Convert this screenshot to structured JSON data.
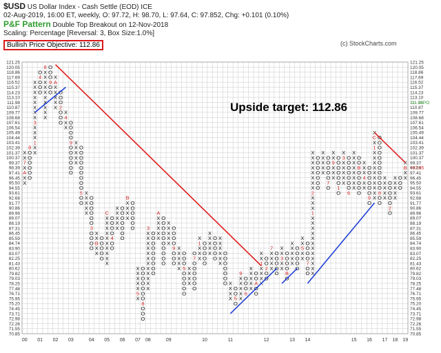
{
  "header": {
    "symbol": "$USD",
    "name": "US Dollar Index - Cash Settle (EOD)  ICE",
    "quote_line": "02-Aug-2019, 16:00 ET, weekly, O: 97.72, H: 98.70, L: 97.64, C: 97.852, Chg: +0.101 (0.10%)",
    "pf_title": "P&F Pattern",
    "pattern_text": "Double Top Breakout on 12-Nov-2018",
    "scaling_text": "Scaling: Percentage [Reversal: 3, Box Size:1.0%]",
    "objective_text": "Bullish Price Objective: 112.86",
    "copyright": "(c) StockCharts.com"
  },
  "colors": {
    "x_mark": "#111111",
    "o_mark": "#111111",
    "month_mark": "#cc2222",
    "resistance": "#e01b1b",
    "support": "#1f3fd6",
    "grid": "#c8c8c8",
    "current_price": "#cc2222",
    "pattern_green": "#2e9b2e"
  },
  "chart_data": {
    "type": "point-and-figure",
    "title": "$USD",
    "annotation": "Upside target: 112.86",
    "box_size_pct": 1.0,
    "reversal": 3,
    "y_scale": "log",
    "ylim": [
      70.85,
      121.25
    ],
    "y_ticks": [
      121.25,
      120.05,
      118.86,
      117.69,
      116.52,
      115.37,
      114.23,
      113.1,
      111.98,
      110.87,
      109.77,
      108.68,
      107.61,
      106.54,
      105.49,
      104.44,
      103.41,
      102.39,
      101.37,
      100.37,
      99.37,
      98.39,
      97.41,
      96.45,
      95.5,
      94.55,
      93.61,
      92.68,
      91.77,
      90.86,
      89.96,
      89.07,
      88.19,
      87.31,
      86.45,
      85.59,
      84.74,
      83.9,
      83.07,
      82.25,
      81.43,
      80.62,
      79.82,
      79.03,
      78.25,
      77.48,
      76.71,
      75.95,
      75.2,
      74.45,
      73.71,
      72.98,
      72.26,
      71.55,
      70.85
    ],
    "right_labels": [
      {
        "row": 8,
        "text": "111.98PO"
      },
      {
        "row": 21,
        "text": "+97.85"
      }
    ],
    "year_labels": [
      "00",
      "01",
      "02",
      "03",
      "04",
      "05",
      "06",
      "07",
      "08",
      "09",
      "10",
      "11",
      "12",
      "13",
      "14",
      "15",
      "16",
      "17",
      "18",
      "19"
    ],
    "column_years": [
      {
        "col": 0,
        "label": "00"
      },
      {
        "col": 3,
        "label": "01"
      },
      {
        "col": 6,
        "label": "02"
      },
      {
        "col": 9,
        "label": "03"
      },
      {
        "col": 13,
        "label": "04"
      },
      {
        "col": 16,
        "label": "05"
      },
      {
        "col": 19,
        "label": "06"
      },
      {
        "col": 22,
        "label": "07"
      },
      {
        "col": 24,
        "label": "08"
      },
      {
        "col": 28,
        "label": "09"
      },
      {
        "col": 35,
        "label": "10"
      },
      {
        "col": 40,
        "label": "11"
      },
      {
        "col": 47,
        "label": "12"
      },
      {
        "col": 52,
        "label": "13"
      },
      {
        "col": 55,
        "label": "14"
      },
      {
        "col": 64,
        "label": "15"
      },
      {
        "col": 67,
        "label": "16"
      },
      {
        "col": 70,
        "label": "17"
      },
      {
        "col": 72,
        "label": "18"
      },
      {
        "col": 74,
        "label": "19"
      }
    ],
    "columns": [
      {
        "type": "X",
        "top": 18,
        "bottom": 24,
        "marks": {
          "20": "7",
          "22": "A"
        }
      },
      {
        "type": "O",
        "top": 17,
        "bottom": 23,
        "marks": {
          "17": "8"
        }
      },
      {
        "type": "X",
        "top": 4,
        "bottom": 18,
        "marks": {
          "16": "1",
          "12": "3"
        }
      },
      {
        "type": "O",
        "top": 2,
        "bottom": 6,
        "marks": {
          "3": "4"
        }
      },
      {
        "type": "X",
        "top": 1,
        "bottom": 11,
        "marks": {
          "1": "8"
        }
      },
      {
        "type": "O",
        "top": 1,
        "bottom": 6,
        "marks": {
          "4": "9"
        }
      },
      {
        "type": "X",
        "top": 3,
        "bottom": 9,
        "marks": {
          "4": "A"
        }
      },
      {
        "type": "O",
        "top": 6,
        "bottom": 12,
        "marks": {
          "9": "2"
        }
      },
      {
        "type": "X",
        "top": 10,
        "bottom": 13,
        "marks": {
          "11": "4"
        }
      },
      {
        "type": "O",
        "top": 12,
        "bottom": 22,
        "marks": {
          "16": "9"
        }
      },
      {
        "type": "X",
        "top": 16,
        "bottom": 20,
        "marks": {}
      },
      {
        "type": "O",
        "top": 17,
        "bottom": 28,
        "marks": {
          "26": "5"
        }
      },
      {
        "type": "X",
        "top": 26,
        "bottom": 30,
        "marks": {}
      },
      {
        "type": "O",
        "top": 27,
        "bottom": 37,
        "marks": {
          "33": "3"
        }
      },
      {
        "type": "X",
        "top": 34,
        "bottom": 38,
        "marks": {
          "36": "B"
        }
      },
      {
        "type": "O",
        "top": 35,
        "bottom": 39,
        "marks": {}
      },
      {
        "type": "X",
        "top": 30,
        "bottom": 40,
        "marks": {
          "30": "C"
        }
      },
      {
        "type": "O",
        "top": 31,
        "bottom": 37,
        "marks": {
          "35": "4"
        }
      },
      {
        "type": "X",
        "top": 29,
        "bottom": 33,
        "marks": {}
      },
      {
        "type": "O",
        "top": 29,
        "bottom": 35,
        "marks": {}
      },
      {
        "type": "X",
        "top": 27,
        "bottom": 31,
        "marks": {
          "27": "B"
        }
      },
      {
        "type": "O",
        "top": 28,
        "bottom": 33,
        "marks": {}
      },
      {
        "type": "X",
        "top": 41,
        "bottom": 47,
        "marks": {
          "46": "5"
        }
      },
      {
        "type": "O",
        "top": 41,
        "bottom": 51,
        "marks": {
          "48": "8"
        }
      },
      {
        "type": "X",
        "top": 33,
        "bottom": 45,
        "marks": {
          "33": "3"
        }
      },
      {
        "type": "O",
        "top": 34,
        "bottom": 42,
        "marks": {}
      },
      {
        "type": "X",
        "top": 30,
        "bottom": 35,
        "marks": {
          "30": "A"
        }
      },
      {
        "type": "O",
        "top": 31,
        "bottom": 40,
        "marks": {}
      },
      {
        "type": "X",
        "top": 32,
        "bottom": 36,
        "marks": {}
      },
      {
        "type": "O",
        "top": 33,
        "bottom": 40,
        "marks": {
          "37": "9"
        }
      },
      {
        "type": "X",
        "top": 37,
        "bottom": 41,
        "marks": {}
      },
      {
        "type": "O",
        "top": 38,
        "bottom": 46,
        "marks": {
          "41": "5"
        }
      },
      {
        "type": "X",
        "top": 41,
        "bottom": 44,
        "marks": {}
      },
      {
        "type": "O",
        "top": 38,
        "bottom": 45,
        "marks": {
          "39": "7"
        }
      },
      {
        "type": "X",
        "top": 35,
        "bottom": 39,
        "marks": {
          "36": "1"
        }
      },
      {
        "type": "O",
        "top": 36,
        "bottom": 40,
        "marks": {}
      },
      {
        "type": "X",
        "top": 34,
        "bottom": 38,
        "marks": {}
      },
      {
        "type": "O",
        "top": 35,
        "bottom": 39,
        "marks": {}
      },
      {
        "type": "X",
        "top": 35,
        "bottom": 40,
        "marks": {}
      },
      {
        "type": "O",
        "top": 38,
        "bottom": 44,
        "marks": {}
      },
      {
        "type": "X",
        "top": 44,
        "bottom": 47,
        "marks": {}
      },
      {
        "type": "O",
        "top": 45,
        "bottom": 48,
        "marks": {
          "47": "5"
        }
      },
      {
        "type": "X",
        "top": 42,
        "bottom": 47,
        "marks": {
          "42": "9"
        }
      },
      {
        "type": "O",
        "top": 43,
        "bottom": 46,
        "marks": {
          "46": "6"
        }
      },
      {
        "type": "X",
        "top": 41,
        "bottom": 45,
        "marks": {}
      },
      {
        "type": "O",
        "top": 42,
        "bottom": 46,
        "marks": {
          "44": "A"
        }
      },
      {
        "type": "X",
        "top": 38,
        "bottom": 44,
        "marks": {
          "40": "1"
        }
      },
      {
        "type": "O",
        "top": 39,
        "bottom": 43,
        "marks": {
          "41": "2"
        }
      },
      {
        "type": "X",
        "top": 37,
        "bottom": 41,
        "marks": {
          "37": "7"
        }
      },
      {
        "type": "O",
        "top": 38,
        "bottom": 42,
        "marks": {}
      },
      {
        "type": "X",
        "top": 37,
        "bottom": 41,
        "marks": {
          "39": "3"
        }
      },
      {
        "type": "O",
        "top": 38,
        "bottom": 43,
        "marks": {
          "42": "B"
        }
      },
      {
        "type": "X",
        "top": 36,
        "bottom": 40,
        "marks": {}
      },
      {
        "type": "O",
        "top": 37,
        "bottom": 41,
        "marks": {}
      },
      {
        "type": "X",
        "top": 35,
        "bottom": 39,
        "marks": {
          "37": "5"
        }
      },
      {
        "type": "O",
        "top": 36,
        "bottom": 42,
        "marks": {
          "40": "7"
        }
      },
      {
        "type": "X",
        "top": 18,
        "bottom": 42,
        "marks": {
          "30": "1",
          "26": "2"
        }
      },
      {
        "type": "O",
        "top": 19,
        "bottom": 25,
        "marks": {}
      },
      {
        "type": "X",
        "top": 18,
        "bottom": 22,
        "marks": {}
      },
      {
        "type": "O",
        "top": 19,
        "bottom": 25,
        "marks": {
          "24": "7"
        }
      },
      {
        "type": "X",
        "top": 18,
        "bottom": 23,
        "marks": {
          "20": "9"
        }
      },
      {
        "type": "O",
        "top": 19,
        "bottom": 26,
        "marks": {
          "25": "1"
        }
      },
      {
        "type": "X",
        "top": 18,
        "bottom": 24,
        "marks": {
          "19": "3"
        }
      },
      {
        "type": "O",
        "top": 19,
        "bottom": 26,
        "marks": {
          "26": "6"
        }
      },
      {
        "type": "X",
        "top": 18,
        "bottom": 25,
        "marks": {}
      },
      {
        "type": "O",
        "top": 19,
        "bottom": 26,
        "marks": {
          "21": "B"
        }
      },
      {
        "type": "X",
        "top": 20,
        "bottom": 25,
        "marks": {
          "23": "4"
        }
      },
      {
        "type": "O",
        "top": 21,
        "bottom": 28,
        "marks": {
          "27": "9"
        }
      },
      {
        "type": "X",
        "top": 14,
        "bottom": 27,
        "marks": {
          "15": "C",
          "17": "1"
        }
      },
      {
        "type": "O",
        "top": 15,
        "bottom": 28,
        "marks": {
          "26": "8"
        }
      },
      {
        "type": "X",
        "top": 23,
        "bottom": 27,
        "marks": {}
      },
      {
        "type": "O",
        "top": 24,
        "bottom": 30,
        "marks": {
          "29": "2"
        }
      },
      {
        "type": "X",
        "top": 23,
        "bottom": 27,
        "marks": {}
      },
      {
        "type": "O",
        "top": 23,
        "bottom": 25,
        "marks": {}
      },
      {
        "type": "X",
        "top": 20,
        "bottom": 23,
        "marks": {
          "21": "B"
        }
      }
    ],
    "trendlines": [
      {
        "kind": "resistance",
        "from": {
          "col": 6,
          "row": 0.5
        },
        "to": {
          "col": 46,
          "row": 40.5
        }
      },
      {
        "kind": "support",
        "from": {
          "col": 2,
          "row": 10
        },
        "to": {
          "col": 8,
          "row": 5
        }
      },
      {
        "kind": "support",
        "from": {
          "col": 40,
          "row": 50
        },
        "to": {
          "col": 49,
          "row": 41
        }
      },
      {
        "kind": "support",
        "from": {
          "col": 50,
          "row": 44
        },
        "to": {
          "col": 53,
          "row": 41
        }
      },
      {
        "kind": "support",
        "from": {
          "col": 55,
          "row": 44
        },
        "to": {
          "col": 68,
          "row": 28
        }
      },
      {
        "kind": "resistance",
        "from": {
          "col": 68,
          "row": 14
        },
        "to": {
          "col": 74,
          "row": 20
        }
      }
    ]
  }
}
